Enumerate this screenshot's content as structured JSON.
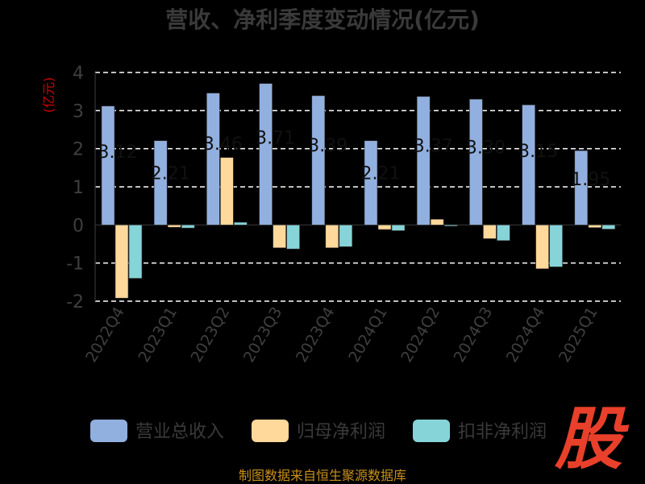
{
  "colors": {
    "revenue": "#92b0df",
    "net_profit": "#ffd89b",
    "deducted_profit": "#86d4d8",
    "logo": "#e8402a",
    "source": "#c8901a"
  },
  "logo": {
    "text": "股"
  },
  "source": "制图数据来自恒生聚源数据库",
  "chart_data": {
    "type": "bar",
    "title": "营收、净利季度变动情况(亿元)",
    "ylabel": "(亿元)",
    "ylim": [
      -2,
      4
    ],
    "yticks": [
      4,
      3,
      2,
      1,
      0,
      -1,
      -2
    ],
    "grid": true,
    "legend_position": "bottom",
    "categories": [
      "2022Q4",
      "2023Q1",
      "2023Q2",
      "2023Q3",
      "2023Q4",
      "2024Q1",
      "2024Q2",
      "2024Q3",
      "2024Q4",
      "2025Q1"
    ],
    "series": [
      {
        "name": "营业总收入",
        "values": [
          3.12,
          2.21,
          3.46,
          3.71,
          3.39,
          2.21,
          3.37,
          3.3,
          3.15,
          1.95
        ]
      },
      {
        "name": "归母净利润",
        "values": [
          -1.92,
          -0.06,
          1.77,
          -0.6,
          -0.6,
          -0.12,
          0.15,
          -0.36,
          -1.15,
          -0.07
        ]
      },
      {
        "name": "扣非净利润",
        "values": [
          -1.4,
          -0.08,
          0.07,
          -0.63,
          -0.57,
          -0.15,
          -0.03,
          -0.41,
          -1.1,
          -0.11
        ]
      }
    ],
    "data_labels": [
      "3.12",
      "2.21",
      "3.46",
      "3.71",
      "3.39",
      "2.21",
      "3.37",
      "3.30",
      "3.15",
      "1.95"
    ]
  }
}
